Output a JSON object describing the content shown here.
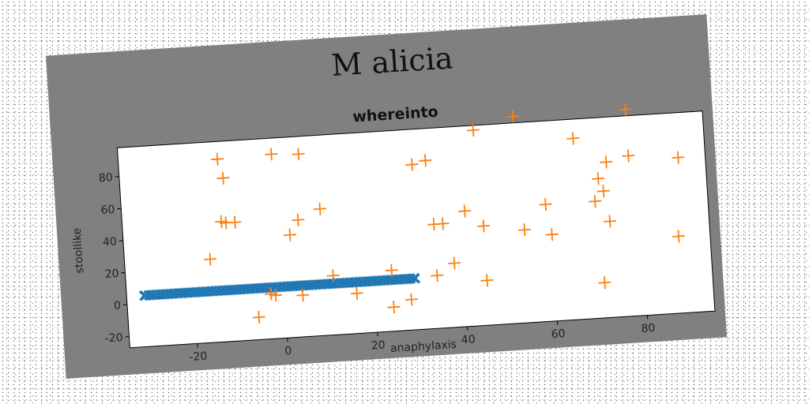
{
  "chart_data": {
    "type": "scatter",
    "suptitle": "M alicia",
    "title": "whereinto",
    "xlabel": "anaphylaxis",
    "ylabel": "stoollike",
    "xlim": [
      -35,
      95
    ],
    "ylim": [
      -27,
      98
    ],
    "xticks": [
      "-20",
      "0",
      "20",
      "40",
      "60",
      "80"
    ],
    "yticks": [
      "-20",
      "0",
      "20",
      "40",
      "60",
      "80"
    ],
    "xtick_values": [
      -20,
      0,
      20,
      40,
      60,
      80
    ],
    "ytick_values": [
      -20,
      0,
      20,
      40,
      60,
      80
    ],
    "grid": false,
    "legend": "none",
    "colors": {
      "figure_bg": "#808080",
      "axes_bg": "#ffffff",
      "series0": "#1f77b4",
      "series1": "#ff7f0e"
    },
    "series": [
      {
        "marker": "X",
        "color": "#1f77b4",
        "points": [
          [
            -31,
            5
          ],
          [
            -30,
            5
          ],
          [
            -29,
            5
          ],
          [
            -28,
            5
          ],
          [
            -27,
            5
          ],
          [
            -26,
            5
          ],
          [
            -25,
            5
          ],
          [
            -24,
            5
          ],
          [
            -23,
            5
          ],
          [
            -22,
            5
          ],
          [
            -21,
            5
          ],
          [
            -20,
            5
          ],
          [
            -19,
            5
          ],
          [
            -18,
            5
          ],
          [
            -17,
            5
          ],
          [
            -16,
            5
          ],
          [
            -15,
            5
          ],
          [
            -14,
            5
          ],
          [
            -13,
            5
          ],
          [
            -12,
            5
          ],
          [
            -11,
            5
          ],
          [
            -10,
            5
          ],
          [
            -9,
            5
          ],
          [
            -8,
            5
          ],
          [
            -7,
            5
          ],
          [
            -6,
            5
          ],
          [
            -5,
            5
          ],
          [
            -4,
            5
          ],
          [
            -3,
            5
          ],
          [
            -2,
            5
          ],
          [
            -1,
            5
          ],
          [
            0,
            5
          ],
          [
            1,
            5
          ],
          [
            2,
            5
          ],
          [
            3,
            5
          ],
          [
            4,
            5
          ],
          [
            5,
            5
          ],
          [
            6,
            5
          ],
          [
            7,
            5
          ],
          [
            8,
            5
          ],
          [
            9,
            5
          ],
          [
            10,
            5
          ],
          [
            11,
            5
          ],
          [
            12,
            5
          ],
          [
            13,
            5
          ],
          [
            14,
            5
          ],
          [
            15,
            5
          ],
          [
            16,
            5
          ],
          [
            17,
            5
          ],
          [
            18,
            5
          ],
          [
            19,
            5
          ],
          [
            20,
            5
          ],
          [
            21,
            5
          ],
          [
            22,
            5
          ],
          [
            23,
            5
          ],
          [
            24,
            5
          ],
          [
            25,
            5
          ],
          [
            26,
            5
          ],
          [
            27,
            5
          ],
          [
            28,
            5
          ],
          [
            29,
            5
          ]
        ]
      },
      {
        "marker": "+",
        "color": "#ff7f0e",
        "points": [
          [
            -13,
            87
          ],
          [
            -12,
            75
          ],
          [
            -1,
            88
          ],
          [
            5,
            87
          ],
          [
            -13,
            48
          ],
          [
            -12,
            47
          ],
          [
            -10,
            47
          ],
          [
            -16,
            25
          ],
          [
            4,
            46
          ],
          [
            9,
            52
          ],
          [
            2,
            37
          ],
          [
            -3,
            1
          ],
          [
            -2,
            0
          ],
          [
            4,
            -1
          ],
          [
            -6,
            -13
          ],
          [
            11,
            10
          ],
          [
            16,
            -2
          ],
          [
            24,
            -12
          ],
          [
            28,
            -8
          ],
          [
            24,
            11
          ],
          [
            30,
            76
          ],
          [
            33,
            78
          ],
          [
            34,
            38
          ],
          [
            36,
            38
          ],
          [
            34,
            6
          ],
          [
            38,
            13
          ],
          [
            41,
            45
          ],
          [
            45,
            35
          ],
          [
            45,
            1
          ],
          [
            44,
            95
          ],
          [
            53,
            102
          ],
          [
            54,
            31
          ],
          [
            59,
            46
          ],
          [
            60,
            27
          ],
          [
            66,
            86
          ],
          [
            70,
            46
          ],
          [
            71,
            60
          ],
          [
            72,
            52
          ],
          [
            73,
            70
          ],
          [
            73,
            33
          ],
          [
            71,
            -5
          ],
          [
            78,
            73
          ],
          [
            78,
            102
          ],
          [
            88,
            21
          ],
          [
            89,
            70
          ]
        ]
      }
    ]
  }
}
